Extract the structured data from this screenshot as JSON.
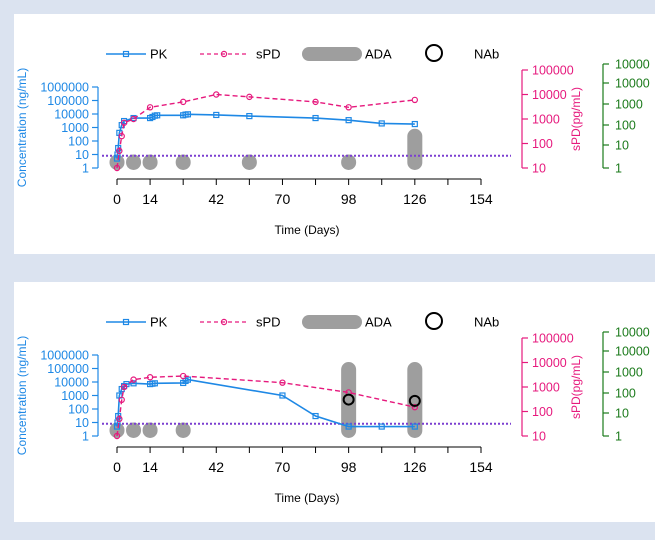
{
  "colors": {
    "pk": "#1e88e5",
    "spd": "#e6197d",
    "ada": "#9e9e9e",
    "nab": "#000000",
    "third_axis": "#1b7a1b",
    "lloq": "#7b3fd0"
  },
  "chart_data": [
    {
      "type": "line",
      "xlabel": "Time (Days)",
      "ylabel_left": "Concentration (ng/mL)",
      "ylabel_right": "sPD(pg/mL)",
      "x_ticks": [
        "0",
        "14",
        "42",
        "70",
        "98",
        "126",
        "154"
      ],
      "left_ticks": [
        "1",
        "10",
        "100",
        "1000",
        "10000",
        "100000",
        "1000000"
      ],
      "right_ticks": [
        "10",
        "100",
        "1000",
        "10000",
        "100000"
      ],
      "third_ticks": [
        "1",
        "10",
        "100",
        "1000",
        "10000",
        "10000"
      ],
      "legend": {
        "pk": "PK",
        "spd": "sPD",
        "ada": "ADA",
        "nab": "NAb"
      },
      "series": [
        {
          "name": "PK",
          "scale": "left",
          "x": [
            0,
            0.2,
            0.5,
            1,
            2,
            3,
            7,
            14,
            15,
            16,
            17,
            28,
            29,
            30,
            42,
            56,
            84,
            98,
            112,
            126
          ],
          "y": [
            5,
            10,
            30,
            400,
            1500,
            3000,
            5000,
            5000,
            6000,
            7500,
            8000,
            8000,
            9000,
            9500,
            8500,
            7000,
            5000,
            3500,
            2000,
            1800
          ]
        },
        {
          "name": "sPD",
          "scale": "right",
          "x": [
            0,
            1,
            2,
            3,
            7,
            14,
            28,
            42,
            56,
            84,
            98,
            126
          ],
          "y": [
            10,
            50,
            200,
            700,
            1000,
            3000,
            5000,
            10000,
            8000,
            5000,
            3000,
            6000
          ]
        }
      ],
      "ada": [
        {
          "x": 0,
          "level": 10
        },
        {
          "x": 7,
          "level": 10
        },
        {
          "x": 14,
          "level": 10
        },
        {
          "x": 28,
          "level": 10
        },
        {
          "x": 56,
          "level": 10
        },
        {
          "x": 98,
          "level": 10
        },
        {
          "x": 126,
          "level": 800
        }
      ],
      "nab": [],
      "lloq": 8
    },
    {
      "type": "line",
      "xlabel": "Time (Days)",
      "ylabel_left": "Concentration (ng/mL)",
      "ylabel_right": "sPD(pg/mL)",
      "x_ticks": [
        "0",
        "14",
        "42",
        "70",
        "98",
        "126",
        "154"
      ],
      "left_ticks": [
        "1",
        "10",
        "100",
        "1000",
        "10000",
        "100000",
        "1000000"
      ],
      "right_ticks": [
        "10",
        "100",
        "1000",
        "10000",
        "100000"
      ],
      "third_ticks": [
        "1",
        "10",
        "100",
        "1000",
        "10000",
        "10000"
      ],
      "legend": {
        "pk": "PK",
        "spd": "sPD",
        "ada": "ADA",
        "nab": "NAb"
      },
      "series": [
        {
          "name": "PK",
          "scale": "left",
          "x": [
            0,
            0.2,
            0.5,
            1,
            2,
            3,
            4,
            7,
            14,
            15,
            16,
            28,
            29,
            30,
            70,
            84,
            98,
            112,
            126
          ],
          "y": [
            5,
            10,
            30,
            1000,
            3000,
            5000,
            7000,
            8000,
            7000,
            7500,
            8000,
            8500,
            12000,
            15000,
            1000,
            30,
            5,
            5,
            5
          ]
        },
        {
          "name": "sPD",
          "scale": "right",
          "x": [
            0,
            1,
            2,
            3,
            7,
            14,
            28,
            70,
            98,
            126
          ],
          "y": [
            10,
            50,
            300,
            1000,
            2000,
            2500,
            2800,
            1500,
            600,
            150
          ]
        }
      ],
      "ada": [
        {
          "x": 0,
          "level": 10
        },
        {
          "x": 7,
          "level": 10
        },
        {
          "x": 14,
          "level": 10
        },
        {
          "x": 28,
          "level": 10
        },
        {
          "x": 98,
          "level": 300000
        },
        {
          "x": 126,
          "level": 300000
        }
      ],
      "nab": [
        {
          "x": 98,
          "y": 500
        },
        {
          "x": 126,
          "y": 400
        }
      ],
      "lloq": 8
    }
  ]
}
